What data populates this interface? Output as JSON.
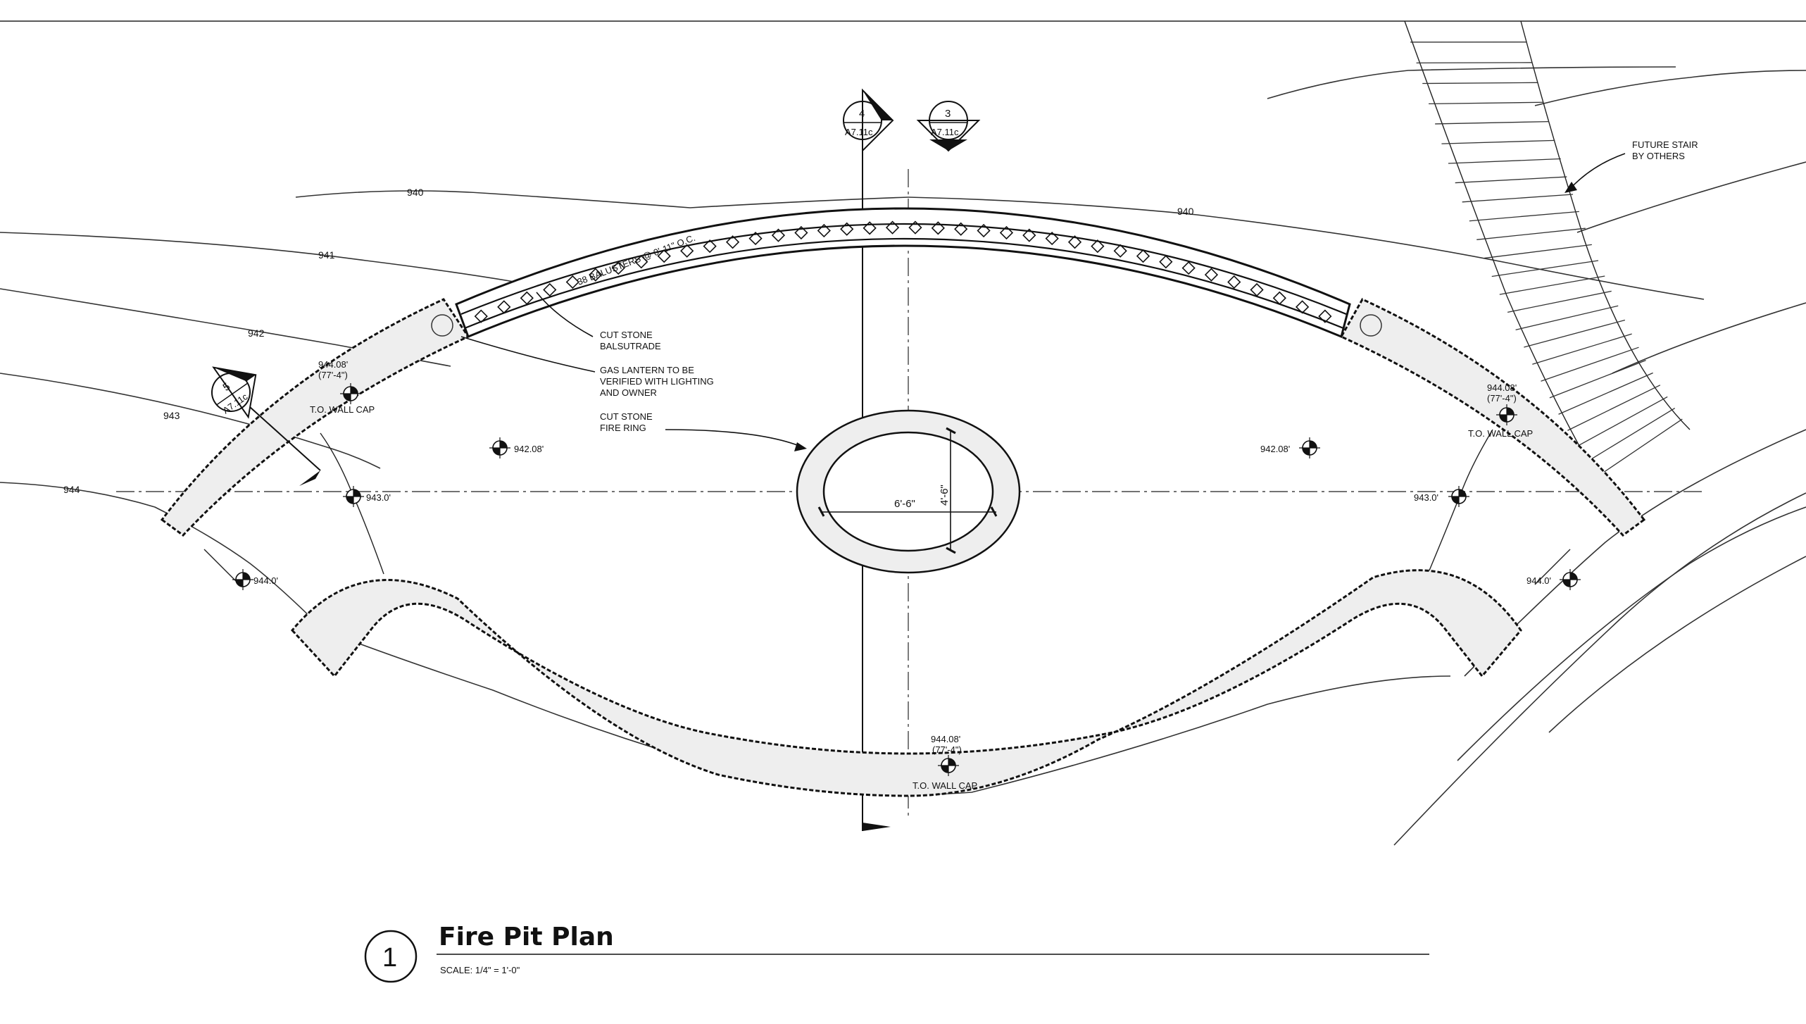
{
  "title": "Fire Pit Plan",
  "drawing_number": "1",
  "scale": "SCALE: 1/4\" = 1'-0\"",
  "contours": [
    "940",
    "941",
    "942",
    "943",
    "944",
    "940"
  ],
  "section_markers": [
    {
      "number": "4",
      "sheet": "A7.11c"
    },
    {
      "number": "3",
      "sheet": "A7.11c"
    },
    {
      "number": "5",
      "sheet": "A7.11c"
    }
  ],
  "notes": {
    "balusters": "38 BALUSTERS @ 0'-11\" O.C.",
    "balustrade_1": "CUT STONE",
    "balustrade_2": "BALSUTRADE",
    "lantern_1": "GAS LANTERN TO BE",
    "lantern_2": "VERIFIED WITH LIGHTING",
    "lantern_3": "AND OWNER",
    "firering_1": "CUT STONE",
    "firering_2": "FIRE RING",
    "stair_1": "FUTURE STAIR",
    "stair_2": "BY OTHERS"
  },
  "dimensions": {
    "ring_width": "6'-6\"",
    "ring_depth": "4'-6\""
  },
  "elevations": {
    "left_wall_cap": "944.08'",
    "left_wall_cap_sub": "(77'-4\")",
    "left_wall_cap_label": "T.O. WALL CAP",
    "right_wall_cap": "944.08'",
    "right_wall_cap_sub": "(77'-4\")",
    "right_wall_cap_label": "T.O. WALL CAP",
    "bottom_wall_cap": "944.08'",
    "bottom_wall_cap_sub": "(77'-4\")",
    "bottom_wall_cap_label": "T.O. WALL CAP",
    "spot_left_942": "942.08'",
    "spot_right_942": "942.08'",
    "spot_left_943": "943.0'",
    "spot_right_943": "943.0'",
    "spot_left_944": "944.0'",
    "spot_right_944": "944.0'"
  }
}
